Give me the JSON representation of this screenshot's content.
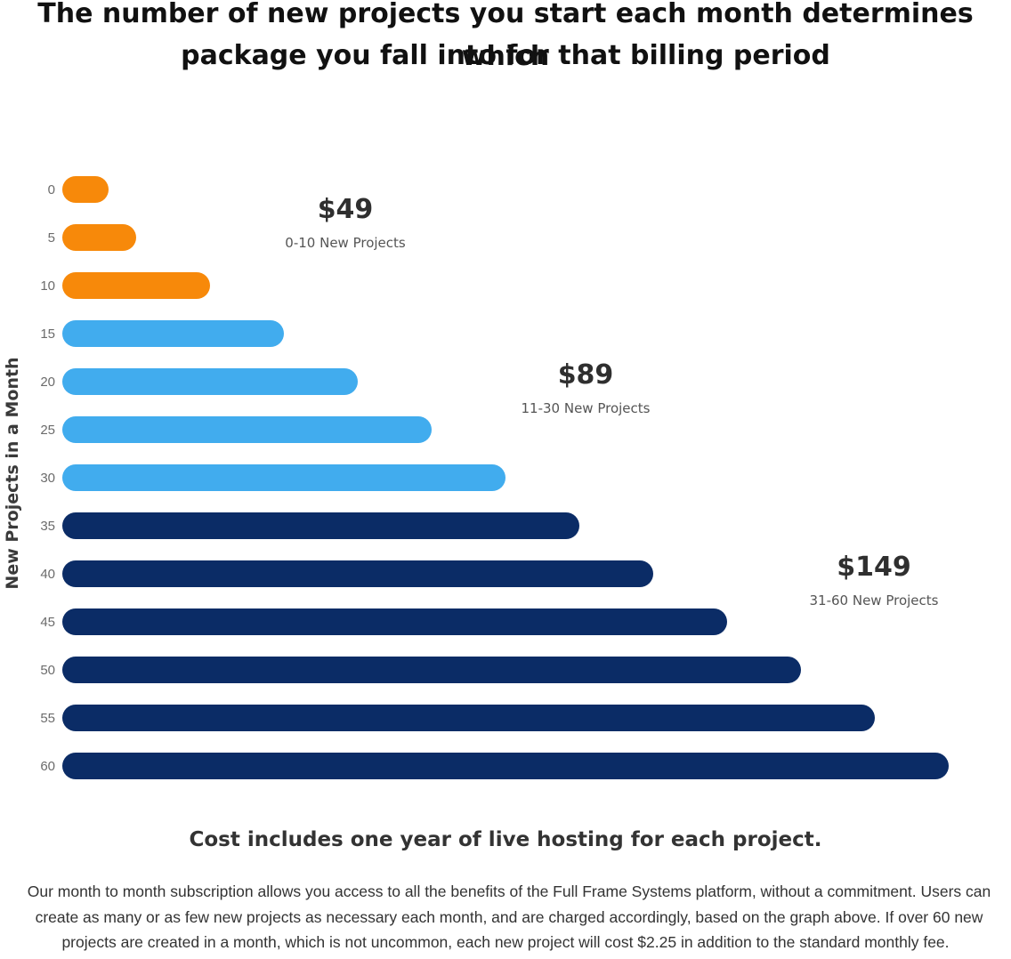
{
  "headline": {
    "line1": "The number of new projects you start each month determines which",
    "line2": "package you fall into for that billing period"
  },
  "chart_data": {
    "type": "bar",
    "orientation": "horizontal",
    "ylabel": "New Projects in a Month",
    "categories": [
      "0",
      "5",
      "10",
      "15",
      "20",
      "25",
      "30",
      "35",
      "40",
      "45",
      "50",
      "55",
      "60"
    ],
    "values": [
      0,
      5,
      10,
      15,
      20,
      25,
      30,
      35,
      40,
      45,
      50,
      55,
      60
    ],
    "bar_colors": [
      "#F7890A",
      "#F7890A",
      "#F7890A",
      "#41ACEE",
      "#41ACEE",
      "#41ACEE",
      "#41ACEE",
      "#0B2C66",
      "#0B2C66",
      "#0B2C66",
      "#0B2C66",
      "#0B2C66",
      "#0B2C66"
    ],
    "xlim": [
      0,
      60
    ],
    "grid": false,
    "tiers": [
      {
        "price": "$49",
        "range": "0-10 New Projects",
        "color": "#F7890A"
      },
      {
        "price": "$89",
        "range": "11-30 New Projects",
        "color": "#41ACEE"
      },
      {
        "price": "$149",
        "range": "31-60 New Projects",
        "color": "#0B2C66"
      }
    ]
  },
  "footer": {
    "subheading": "Cost includes one year of live hosting for each project.",
    "body_line1": "Our month to month subscription allows you access to all the benefits of the Full Frame Systems platform, without a commitment. Users can",
    "body_line2": "create as many or as few new projects as necessary each month, and are charged accordingly, based on the graph above. If over 60 new",
    "body_line3": "projects are created in a month, which is not uncommon, each new project will cost $2.25 in addition to the standard monthly fee."
  }
}
